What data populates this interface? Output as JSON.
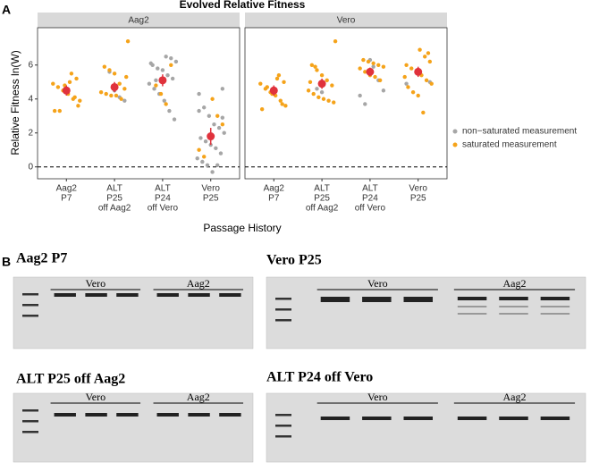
{
  "chart_data": {
    "type": "strip",
    "panel_label": "A",
    "title": "Evolved Relative Fitness",
    "x_label": "Passage History",
    "y_label": "Relative Fitness ln(W)",
    "ylim": [
      -0.7,
      8.2
    ],
    "yticks": [
      0,
      2,
      4,
      6
    ],
    "reference_line": 0,
    "grid": false,
    "legend": "right",
    "mean_color": "#e0323c",
    "series": [
      {
        "name": "non−saturated measurement",
        "color": "#a6a6a6"
      },
      {
        "name": "saturated measurement",
        "color": "#f5a31a"
      }
    ],
    "categories": [
      [
        "Aag2",
        "P7"
      ],
      [
        "ALT",
        "P25",
        "off Aag2"
      ],
      [
        "ALT",
        "P24",
        "off Vero"
      ],
      [
        "Vero",
        "P25"
      ]
    ],
    "facets": [
      {
        "title": "Aag2",
        "series": [
          {
            "values": [
              [],
              [
                5.6,
                4.5,
                4.1,
                3.9
              ],
              [
                6.5,
                6.4,
                6.2,
                6.0,
                5.8,
                5.7,
                5.4,
                5.2,
                4.9,
                4.6,
                4.3,
                3.9,
                3.3,
                2.8,
                6.1,
                5.1
              ],
              [
                4.6,
                4.3,
                3.5,
                3.0,
                2.5,
                2.3,
                2.0,
                1.7,
                1.5,
                1.3,
                1.1,
                0.8,
                0.5,
                0.3,
                0.1,
                -0.3,
                0.1,
                2.9,
                3.3
              ]
            ]
          },
          {
            "values": [
              [
                5.5,
                5.2,
                4.9,
                4.7,
                4.5,
                4.3,
                4.0,
                3.6,
                3.3,
                3.3,
                4.8,
                5.0,
                4.1,
                3.9
              ],
              [
                7.4,
                5.9,
                5.7,
                5.5,
                4.9,
                4.6,
                4.4,
                4.3,
                4.2,
                4.2,
                4.0,
                5.3
              ],
              [
                4.8,
                4.3,
                3.7,
                6.0
              ],
              [
                4.0,
                3.0,
                2.5,
                1.0,
                0.6
              ]
            ]
          }
        ],
        "means": [
          4.5,
          4.7,
          5.1,
          1.8
        ],
        "errors": [
          0.3,
          0.3,
          0.35,
          0.5
        ]
      },
      {
        "title": "Vero",
        "series": [
          {
            "values": [
              [],
              [
                4.6,
                4.4
              ],
              [
                5.9,
                5.1,
                4.5,
                4.2,
                3.7,
                6.3
              ],
              [
                5.0,
                4.9
              ]
            ]
          },
          {
            "values": [
              [
                5.4,
                5.0,
                4.9,
                4.6,
                4.4,
                4.2,
                3.9,
                3.6,
                3.4,
                4.7,
                4.3,
                5.2,
                3.7
              ],
              [
                7.4,
                6.0,
                5.7,
                5.4,
                5.1,
                4.8,
                4.5,
                4.3,
                4.1,
                4.0,
                3.9,
                3.8,
                5.0,
                5.9
              ],
              [
                6.3,
                6.2,
                6.1,
                6.0,
                5.9,
                5.8,
                5.6,
                5.4,
                5.3,
                5.1
              ],
              [
                6.9,
                6.5,
                6.2,
                6.0,
                5.8,
                5.6,
                5.4,
                5.1,
                4.9,
                4.7,
                4.4,
                4.2,
                3.2,
                6.7,
                5.3
              ]
            ]
          }
        ],
        "means": [
          4.5,
          4.9,
          5.6,
          5.6
        ],
        "errors": [
          0.3,
          0.3,
          0.25,
          0.3
        ]
      }
    ]
  },
  "panel_b": {
    "label": "B",
    "gels": [
      {
        "title": "Aag2 P7",
        "groups": [
          "Vero",
          "Aag2"
        ]
      },
      {
        "title": "Vero P25",
        "groups": [
          "Vero",
          "Aag2"
        ]
      },
      {
        "title": "ALT P25 off Aag2",
        "groups": [
          "Vero",
          "Aag2"
        ]
      },
      {
        "title": "ALT P24 off Vero",
        "groups": [
          "Vero",
          "Aag2"
        ]
      }
    ]
  }
}
